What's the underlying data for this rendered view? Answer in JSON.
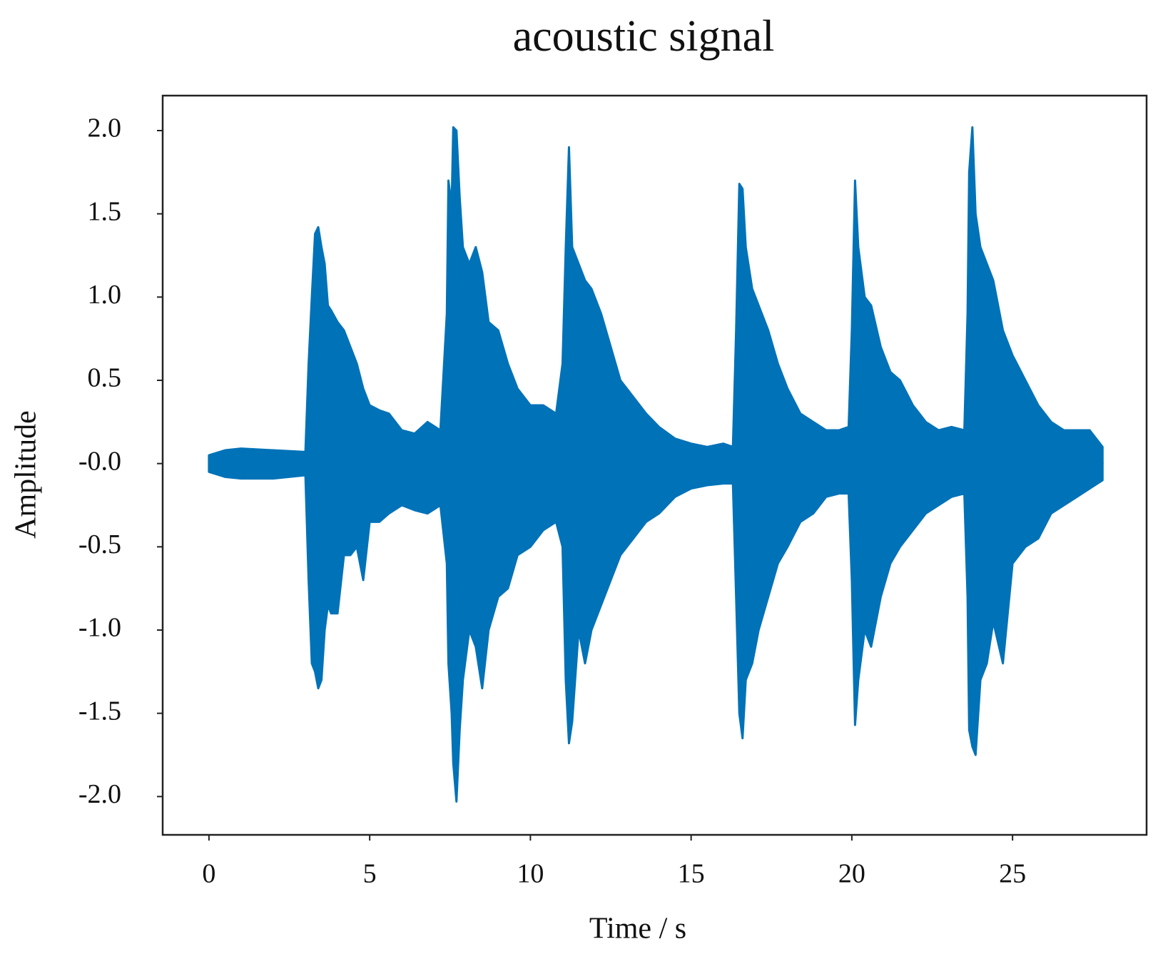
{
  "chart_data": {
    "type": "area",
    "title": "acoustic signal",
    "x_label": "Time / s",
    "y_label": "Amplitude",
    "x": [
      0,
      0.5,
      1,
      2,
      3,
      3.1,
      3.2,
      3.3,
      3.4,
      3.5,
      3.6,
      3.7,
      3.8,
      4,
      4.2,
      4.4,
      4.6,
      4.8,
      5,
      5.3,
      5.6,
      6,
      6.4,
      6.8,
      7.2,
      7.4,
      7.45,
      7.55,
      7.6,
      7.7,
      7.8,
      7.9,
      8.1,
      8.3,
      8.5,
      8.7,
      9,
      9.3,
      9.6,
      10,
      10.4,
      10.8,
      11,
      11.1,
      11.2,
      11.3,
      11.5,
      11.7,
      11.9,
      12.2,
      12.5,
      12.8,
      13.2,
      13.6,
      14,
      14.5,
      15,
      15.5,
      16,
      16.3,
      16.4,
      16.5,
      16.6,
      16.7,
      16.9,
      17.1,
      17.4,
      17.7,
      18,
      18.4,
      18.8,
      19.2,
      19.6,
      19.9,
      20,
      20.1,
      20.2,
      20.4,
      20.6,
      20.9,
      21.2,
      21.5,
      21.9,
      22.3,
      22.7,
      23.1,
      23.5,
      23.6,
      23.65,
      23.75,
      23.85,
      24,
      24.2,
      24.4,
      24.7,
      25,
      25.4,
      25.8,
      26.2,
      26.6,
      27,
      27.4,
      27.8
    ],
    "series": [
      {
        "color": "#0072b8",
        "values": [
          0.05,
          0.08,
          0.09,
          0.08,
          0.07,
          0.6,
          1.0,
          1.38,
          1.42,
          1.3,
          1.2,
          0.95,
          0.92,
          0.85,
          0.8,
          0.7,
          0.6,
          0.45,
          0.35,
          0.32,
          0.3,
          0.2,
          0.18,
          0.25,
          0.2,
          0.9,
          1.7,
          1.55,
          2.02,
          2.0,
          1.6,
          1.3,
          1.2,
          1.3,
          1.15,
          0.85,
          0.8,
          0.6,
          0.45,
          0.35,
          0.35,
          0.3,
          0.6,
          1.3,
          1.9,
          1.3,
          1.2,
          1.1,
          1.05,
          0.9,
          0.7,
          0.5,
          0.4,
          0.3,
          0.22,
          0.15,
          0.12,
          0.1,
          0.12,
          0.1,
          0.8,
          1.68,
          1.65,
          1.3,
          1.05,
          0.95,
          0.8,
          0.6,
          0.45,
          0.3,
          0.25,
          0.2,
          0.2,
          0.22,
          0.8,
          1.7,
          1.3,
          1.0,
          0.95,
          0.7,
          0.55,
          0.5,
          0.35,
          0.25,
          0.2,
          0.22,
          0.2,
          0.9,
          1.75,
          2.02,
          1.5,
          1.3,
          1.2,
          1.1,
          0.8,
          0.65,
          0.5,
          0.35,
          0.25,
          0.2,
          0.2,
          0.2,
          0.1
        ]
      },
      {
        "color": "#0072b8",
        "values": [
          -0.05,
          -0.08,
          -0.09,
          -0.09,
          -0.07,
          -0.7,
          -1.2,
          -1.25,
          -1.35,
          -1.3,
          -1.0,
          -0.85,
          -0.9,
          -0.9,
          -0.55,
          -0.55,
          -0.5,
          -0.7,
          -0.35,
          -0.35,
          -0.3,
          -0.25,
          -0.28,
          -0.3,
          -0.25,
          -0.6,
          -1.2,
          -1.5,
          -1.8,
          -2.03,
          -1.6,
          -1.3,
          -1.0,
          -1.1,
          -1.35,
          -1.0,
          -0.8,
          -0.75,
          -0.55,
          -0.5,
          -0.4,
          -0.35,
          -0.5,
          -1.3,
          -1.68,
          -1.55,
          -1.0,
          -1.2,
          -1.0,
          -0.85,
          -0.7,
          -0.55,
          -0.45,
          -0.35,
          -0.3,
          -0.2,
          -0.15,
          -0.13,
          -0.12,
          -0.12,
          -0.8,
          -1.5,
          -1.65,
          -1.3,
          -1.2,
          -1.0,
          -0.8,
          -0.6,
          -0.5,
          -0.35,
          -0.3,
          -0.2,
          -0.18,
          -0.18,
          -0.7,
          -1.57,
          -1.3,
          -1.0,
          -1.1,
          -0.8,
          -0.6,
          -0.5,
          -0.4,
          -0.3,
          -0.25,
          -0.2,
          -0.18,
          -0.8,
          -1.6,
          -1.7,
          -1.75,
          -1.3,
          -1.2,
          -0.95,
          -1.2,
          -0.6,
          -0.5,
          -0.45,
          -0.3,
          -0.25,
          -0.2,
          -0.15,
          -0.1
        ]
      }
    ],
    "xlim": [
      -1.44,
      29.17
    ],
    "xticks": [
      0,
      5,
      10,
      15,
      20,
      25
    ],
    "ylim": [
      -2.23,
      2.21
    ],
    "yticks": [
      {
        "value": -2,
        "label": "-2.0"
      },
      {
        "value": -1.5,
        "label": "-1.5"
      },
      {
        "value": -1,
        "label": "-1.0"
      },
      {
        "value": -0.5,
        "label": "-0.5"
      },
      {
        "value": 0,
        "label": "-0.0"
      },
      {
        "value": 0.5,
        "label": "0.5"
      },
      {
        "value": 1,
        "label": "1.0"
      },
      {
        "value": 1.5,
        "label": "1.5"
      },
      {
        "value": 2,
        "label": "2.0"
      }
    ],
    "grid": false
  }
}
